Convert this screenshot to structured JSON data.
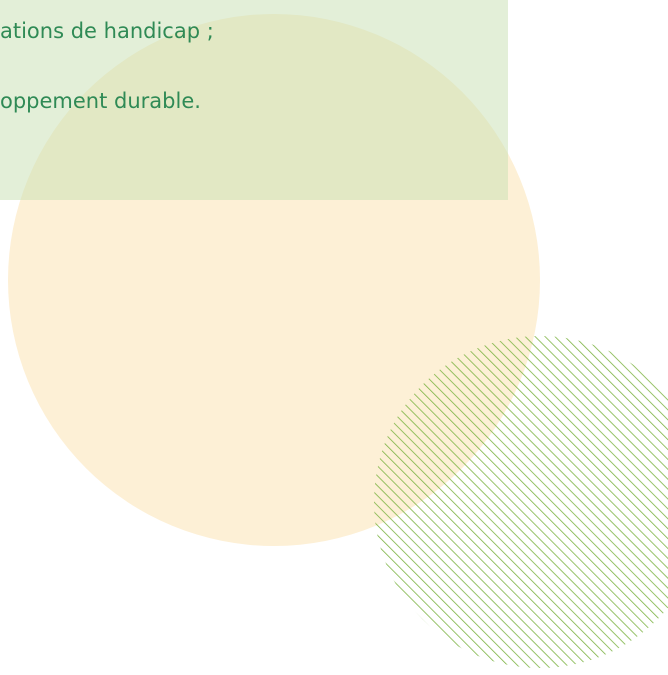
{
  "content": {
    "lines": [
      "ations de handicap ;",
      "oppement durable."
    ]
  }
}
